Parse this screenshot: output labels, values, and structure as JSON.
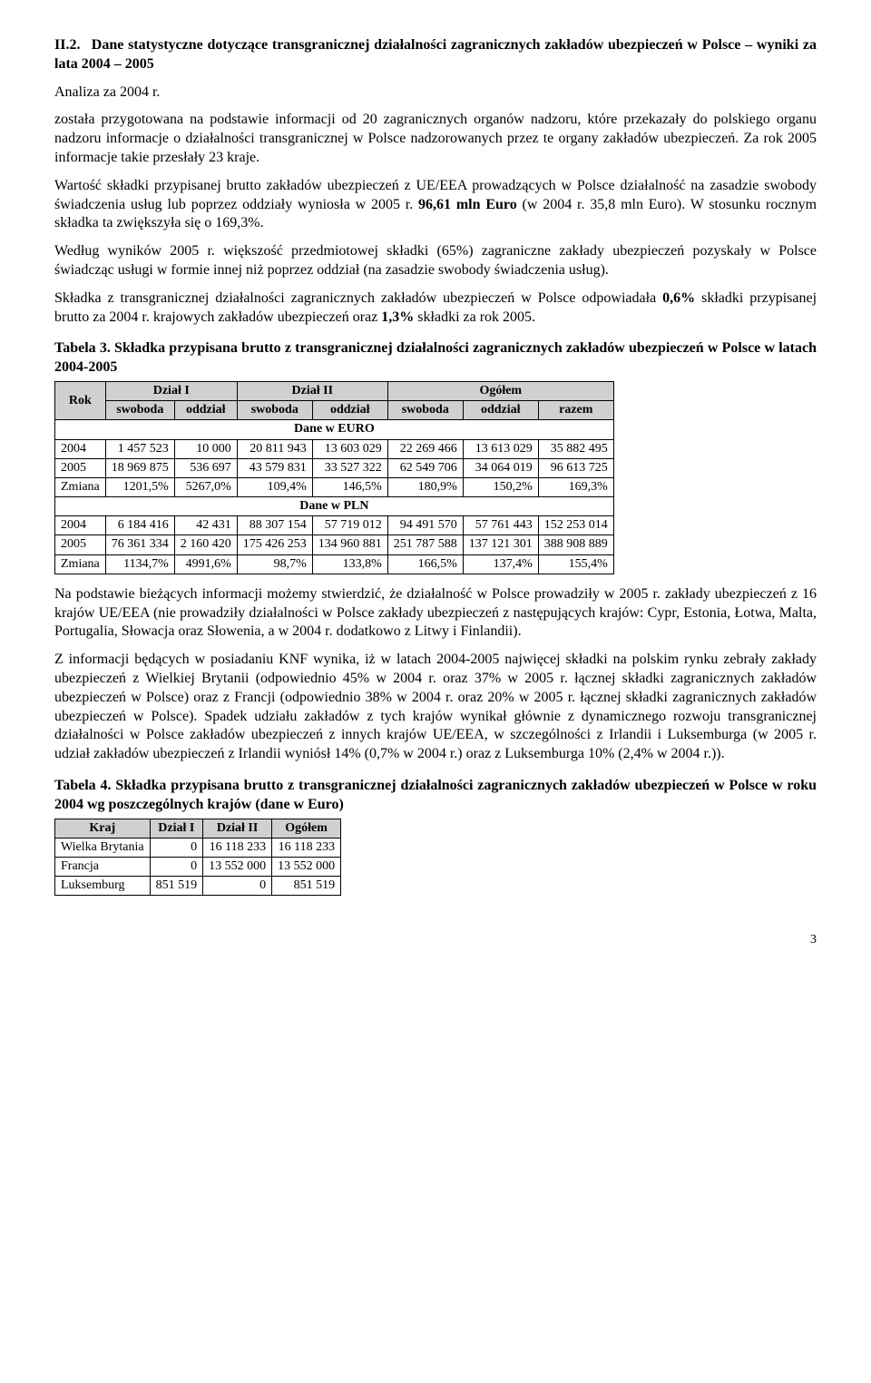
{
  "section": {
    "number": "II.2.",
    "title": "Dane statystyczne dotyczące transgranicznej działalności zagranicznych zakładów ubezpieczeń w Polsce – wyniki za lata 2004 – 2005"
  },
  "subline": "Analiza za 2004 r.",
  "para1": "została przygotowana na podstawie informacji od 20 zagranicznych organów nadzoru, które przekazały do polskiego organu nadzoru informacje o działalności transgranicznej w Polsce nadzorowanych przez te organy zakładów ubezpieczeń. Za rok 2005 informacje takie przesłały 23 kraje.",
  "para2a": "Wartość składki przypisanej brutto zakładów ubezpieczeń z UE/EEA prowadzących w Polsce działalność na zasadzie swobody świadczenia usług lub poprzez oddziały wyniosła w 2005 r. ",
  "para2b": "96,61 mln Euro",
  "para2c": " (w 2004 r. 35,8 mln Euro). W stosunku rocznym składka ta zwiększyła się o 169,3%.",
  "para3": "Według wyników 2005 r. większość przedmiotowej składki (65%) zagraniczne zakłady ubezpieczeń pozyskały w Polsce świadcząc usługi w formie innej niż poprzez oddział (na zasadzie swobody świadczenia usług).",
  "para4a": "Składka z transgranicznej działalności zagranicznych zakładów ubezpieczeń w Polsce odpowiadała ",
  "para4b": "0,6%",
  "para4c": " składki przypisanej brutto za 2004 r. krajowych zakładów ubezpieczeń oraz ",
  "para4d": "1,3%",
  "para4e": " składki za rok 2005.",
  "table3": {
    "caption_lead": "Tabela 3.",
    "caption": " Składka przypisana brutto z transgranicznej działalności zagranicznych zakładów ubezpieczeń w Polsce w latach 2004-2005",
    "head_rok": "Rok",
    "head_d1": "Dział I",
    "head_d2": "Dział II",
    "head_og": "Ogółem",
    "sub_swoboda": "swoboda",
    "sub_oddzial": "oddział",
    "sub_razem": "razem",
    "sec_euro": "Dane w EURO",
    "sec_pln": "Dane w PLN",
    "euro": {
      "r2004": {
        "label": "2004",
        "c1": "1 457 523",
        "c2": "10 000",
        "c3": "20 811 943",
        "c4": "13 603 029",
        "c5": "22 269 466",
        "c6": "13 613 029",
        "c7": "35 882 495"
      },
      "r2005": {
        "label": "2005",
        "c1": "18 969 875",
        "c2": "536 697",
        "c3": "43 579 831",
        "c4": "33 527 322",
        "c5": "62 549 706",
        "c6": "34 064 019",
        "c7": "96 613 725"
      },
      "zm": {
        "label": "Zmiana",
        "c1": "1201,5%",
        "c2": "5267,0%",
        "c3": "109,4%",
        "c4": "146,5%",
        "c5": "180,9%",
        "c6": "150,2%",
        "c7": "169,3%"
      }
    },
    "pln": {
      "r2004": {
        "label": "2004",
        "c1": "6 184 416",
        "c2": "42 431",
        "c3": "88 307 154",
        "c4": "57 719 012",
        "c5": "94 491 570",
        "c6": "57 761 443",
        "c7": "152 253 014"
      },
      "r2005": {
        "label": "2005",
        "c1": "76 361 334",
        "c2": "2 160 420",
        "c3": "175 426 253",
        "c4": "134 960 881",
        "c5": "251 787 588",
        "c6": "137 121 301",
        "c7": "388 908 889"
      },
      "zm": {
        "label": "Zmiana",
        "c1": "1134,7%",
        "c2": "4991,6%",
        "c3": "98,7%",
        "c4": "133,8%",
        "c5": "166,5%",
        "c6": "137,4%",
        "c7": "155,4%"
      }
    }
  },
  "para5": "Na podstawie bieżących informacji możemy stwierdzić, że działalność w Polsce prowadziły w 2005 r. zakłady ubezpieczeń z 16 krajów UE/EEA (nie prowadziły działalności w Polsce zakłady ubezpieczeń z następujących krajów: Cypr, Estonia, Łotwa, Malta, Portugalia, Słowacja oraz Słowenia, a w 2004 r. dodatkowo z Litwy i Finlandii).",
  "para6": "Z informacji będących w posiadaniu KNF wynika, iż w latach 2004-2005 najwięcej składki na polskim rynku zebrały zakłady ubezpieczeń z Wielkiej Brytanii (odpowiednio 45% w 2004 r. oraz 37% w 2005 r. łącznej składki zagranicznych zakładów ubezpieczeń w Polsce) oraz z Francji (odpowiednio 38% w 2004 r. oraz 20% w 2005 r. łącznej składki zagranicznych zakładów ubezpieczeń w Polsce). Spadek udziału zakładów z tych krajów wynikał głównie z dynamicznego rozwoju transgranicznej działalności w Polsce zakładów ubezpieczeń z innych krajów UE/EEA, w szczególności z Irlandii i Luksemburga (w 2005 r. udział zakładów ubezpieczeń z Irlandii wyniósł 14% (0,7% w 2004 r.) oraz z Luksemburga 10% (2,4% w 2004 r.)).",
  "table4": {
    "caption_lead": "Tabela 4.",
    "caption": " Składka przypisana brutto z transgranicznej działalności zagranicznych zakładów ubezpieczeń w Polsce w roku 2004 wg poszczególnych krajów (dane w Euro)",
    "head_kraj": "Kraj",
    "head_d1": "Dział I",
    "head_d2": "Dział II",
    "head_og": "Ogółem",
    "rows": {
      "r0": {
        "kraj": "Wielka Brytania",
        "d1": "0",
        "d2": "16 118 233",
        "og": "16 118 233"
      },
      "r1": {
        "kraj": "Francja",
        "d1": "0",
        "d2": "13 552 000",
        "og": "13 552 000"
      },
      "r2": {
        "kraj": "Luksemburg",
        "d1": "851 519",
        "d2": "0",
        "og": "851 519"
      }
    }
  },
  "pagenum": "3"
}
